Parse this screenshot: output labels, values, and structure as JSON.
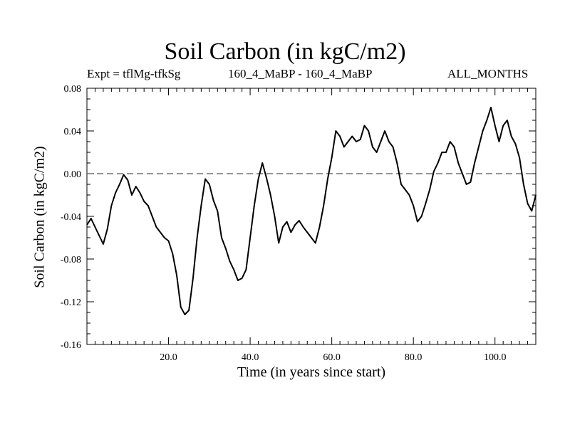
{
  "chart_data": {
    "type": "line",
    "title": "Soil Carbon (in kgC/m2)",
    "subtitle_left": "Expt = tflMg-tfkSg",
    "subtitle_center": "160_4_MaBP - 160_4_MaBP",
    "subtitle_right": "ALL_MONTHS",
    "xlabel": "Time (in years since start)",
    "ylabel": "Soil Carbon (in kgC/m2)",
    "xlim": [
      0,
      110
    ],
    "ylim": [
      -0.16,
      0.08
    ],
    "xticks": [
      20,
      40,
      60,
      80,
      100
    ],
    "xtick_labels": [
      "20.0",
      "40.0",
      "60.0",
      "80.0",
      "100.0"
    ],
    "yticks": [
      0.08,
      0.04,
      0.0,
      -0.04,
      -0.08,
      -0.12,
      -0.16
    ],
    "ytick_labels": [
      "0.08",
      "0.04",
      "0.00",
      "-0.04",
      "-0.08",
      "-0.12",
      "-0.16"
    ],
    "reference_line": {
      "y": 0.0,
      "style": "dashed"
    },
    "series": [
      {
        "name": "Soil Carbon",
        "x": [
          0,
          1,
          2,
          3,
          4,
          5,
          6,
          7,
          8,
          9,
          10,
          11,
          12,
          13,
          14,
          15,
          16,
          17,
          18,
          19,
          20,
          21,
          22,
          23,
          24,
          25,
          26,
          27,
          28,
          29,
          30,
          31,
          32,
          33,
          34,
          35,
          36,
          37,
          38,
          39,
          40,
          41,
          42,
          43,
          44,
          45,
          46,
          47,
          48,
          49,
          50,
          51,
          52,
          53,
          54,
          55,
          56,
          57,
          58,
          59,
          60,
          61,
          62,
          63,
          64,
          65,
          66,
          67,
          68,
          69,
          70,
          71,
          72,
          73,
          74,
          75,
          76,
          77,
          78,
          79,
          80,
          81,
          82,
          83,
          84,
          85,
          86,
          87,
          88,
          89,
          90,
          91,
          92,
          93,
          94,
          95,
          96,
          97,
          98,
          99,
          100,
          101,
          102,
          103,
          104,
          105,
          106,
          107,
          108,
          109,
          110
        ],
        "values": [
          -0.048,
          -0.042,
          -0.05,
          -0.058,
          -0.066,
          -0.052,
          -0.03,
          -0.018,
          -0.01,
          -0.001,
          -0.006,
          -0.02,
          -0.012,
          -0.018,
          -0.026,
          -0.03,
          -0.04,
          -0.05,
          -0.055,
          -0.06,
          -0.063,
          -0.075,
          -0.095,
          -0.125,
          -0.132,
          -0.128,
          -0.098,
          -0.06,
          -0.03,
          -0.005,
          -0.01,
          -0.025,
          -0.035,
          -0.06,
          -0.07,
          -0.082,
          -0.09,
          -0.1,
          -0.098,
          -0.09,
          -0.06,
          -0.03,
          -0.005,
          0.01,
          -0.004,
          -0.02,
          -0.04,
          -0.065,
          -0.05,
          -0.045,
          -0.055,
          -0.048,
          -0.044,
          -0.05,
          -0.055,
          -0.06,
          -0.065,
          -0.05,
          -0.03,
          -0.005,
          0.015,
          0.04,
          0.035,
          0.025,
          0.03,
          0.035,
          0.03,
          0.032,
          0.045,
          0.04,
          0.025,
          0.02,
          0.03,
          0.04,
          0.03,
          0.025,
          0.01,
          -0.01,
          -0.015,
          -0.02,
          -0.03,
          -0.045,
          -0.04,
          -0.028,
          -0.015,
          0.002,
          0.01,
          0.02,
          0.02,
          0.03,
          0.025,
          0.01,
          0.0,
          -0.01,
          -0.008,
          0.01,
          0.025,
          0.04,
          0.05,
          0.062,
          0.045,
          0.03,
          0.045,
          0.05,
          0.035,
          0.028,
          0.015,
          -0.01,
          -0.028,
          -0.035,
          -0.02
        ]
      }
    ]
  }
}
